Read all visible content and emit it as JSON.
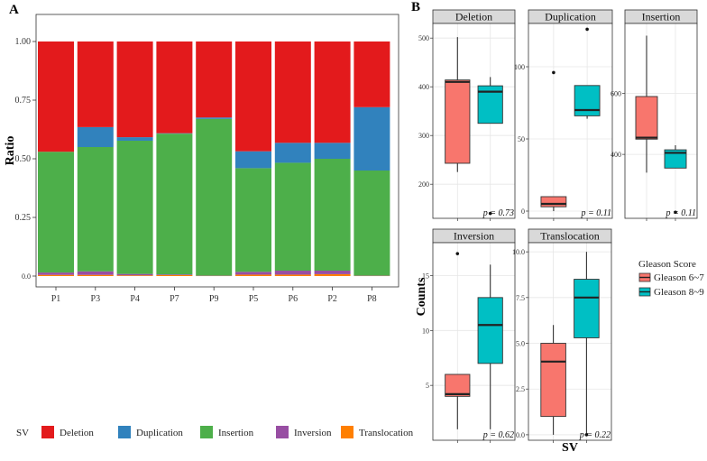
{
  "colors": {
    "Deletion": "#e31a1c",
    "Duplication": "#3182bd",
    "Insertion": "#4daf4a",
    "Inversion": "#984ea3",
    "Translocation": "#ff7f00",
    "Gleason 6~7": "#f8766d",
    "Gleason 8~9": "#00bfc4"
  },
  "chart_data": [
    {
      "panel": "A",
      "type": "bar",
      "stacked": true,
      "ylabel": "Ratio",
      "ylim": [
        0,
        1
      ],
      "yticks": [
        "0.0",
        "0.25",
        "0.50",
        "0.75",
        "1.00"
      ],
      "categories": [
        "P1",
        "P3",
        "P4",
        "P7",
        "P9",
        "P5",
        "P6",
        "P2",
        "P8"
      ],
      "legend_title": "SV",
      "series": [
        {
          "name": "Translocation",
          "values": [
            0.005,
            0.005,
            0.003,
            0.004,
            0.001,
            0.006,
            0.006,
            0.008,
            0.001
          ]
        },
        {
          "name": "Inversion",
          "values": [
            0.01,
            0.015,
            0.006,
            0.003,
            0.001,
            0.012,
            0.017,
            0.015,
            0.001
          ]
        },
        {
          "name": "Insertion",
          "values": [
            0.515,
            0.53,
            0.568,
            0.6,
            0.668,
            0.442,
            0.46,
            0.477,
            0.448
          ]
        },
        {
          "name": "Duplication",
          "values": [
            0.0,
            0.085,
            0.015,
            0.002,
            0.006,
            0.072,
            0.085,
            0.068,
            0.27
          ]
        },
        {
          "name": "Deletion",
          "values": [
            0.47,
            0.365,
            0.408,
            0.391,
            0.324,
            0.468,
            0.432,
            0.432,
            0.28
          ]
        }
      ]
    },
    {
      "panel": "B",
      "type": "box",
      "ylabel": "Counts",
      "xlabel": "SV",
      "legend_title": "Gleason Score",
      "groups": [
        "Gleason 6~7",
        "Gleason 8~9"
      ],
      "facets": [
        {
          "title": "Deletion",
          "ylim": [
            130,
            530
          ],
          "yticks": [
            200,
            300,
            400,
            500
          ],
          "p": "p = 0.73",
          "boxes": [
            {
              "group": "Gleason 6~7",
              "min": 225,
              "q1": 243,
              "median": 410,
              "q3": 414,
              "max": 502,
              "outliers": []
            },
            {
              "group": "Gleason 8~9",
              "min": 325,
              "q1": 325,
              "median": 390,
              "q3": 402,
              "max": 420,
              "outliers": [
                140
              ]
            }
          ]
        },
        {
          "title": "Duplication",
          "ylim": [
            -5,
            130
          ],
          "yticks": [
            0,
            50,
            100
          ],
          "p": "p = 0.11",
          "boxes": [
            {
              "group": "Gleason 6~7",
              "min": 0,
              "q1": 3,
              "median": 5,
              "q3": 10,
              "max": 10,
              "outliers": [
                96
              ]
            },
            {
              "group": "Gleason 8~9",
              "min": 64,
              "q1": 66,
              "median": 70,
              "q3": 87,
              "max": 87,
              "outliers": [
                126
              ]
            }
          ]
        },
        {
          "title": "Insertion",
          "ylim": [
            190,
            830
          ],
          "yticks": [
            400,
            600
          ],
          "p": "p = 0.11",
          "boxes": [
            {
              "group": "Gleason 6~7",
              "min": 340,
              "q1": 450,
              "median": 455,
              "q3": 590,
              "max": 790,
              "outliers": []
            },
            {
              "group": "Gleason 8~9",
              "min": 355,
              "q1": 355,
              "median": 405,
              "q3": 415,
              "max": 430,
              "outliers": [
                210
              ]
            }
          ]
        },
        {
          "title": "Inversion",
          "ylim": [
            0,
            18
          ],
          "yticks": [
            5,
            10,
            15
          ],
          "p": "p = 0.62",
          "boxes": [
            {
              "group": "Gleason 6~7",
              "min": 1,
              "q1": 4,
              "median": 4.2,
              "q3": 6,
              "max": 6,
              "outliers": [
                17
              ]
            },
            {
              "group": "Gleason 8~9",
              "min": 1,
              "q1": 7,
              "median": 10.5,
              "q3": 13,
              "max": 16,
              "outliers": []
            }
          ]
        },
        {
          "title": "Translocation",
          "ylim": [
            -0.3,
            10.5
          ],
          "yticks": [
            "0.0",
            "2.5",
            "5.0",
            "7.5",
            "10.0"
          ],
          "p": "p = 0.22",
          "boxes": [
            {
              "group": "Gleason 6~7",
              "min": 0,
              "q1": 1,
              "median": 4,
              "q3": 5,
              "max": 6,
              "outliers": []
            },
            {
              "group": "Gleason 8~9",
              "min": 0,
              "q1": 5.3,
              "median": 7.5,
              "q3": 8.5,
              "max": 10,
              "outliers": [
                0
              ]
            }
          ]
        }
      ]
    }
  ],
  "labels": {
    "panel_a": "A",
    "panel_b": "B",
    "legend_a_title": "SV",
    "legend_a_items": [
      "Deletion",
      "Duplication",
      "Insertion",
      "Inversion",
      "Translocation"
    ],
    "legend_b_title": "Gleason Score",
    "legend_b_items": [
      "Gleason 6~7",
      "Gleason 8~9"
    ]
  }
}
